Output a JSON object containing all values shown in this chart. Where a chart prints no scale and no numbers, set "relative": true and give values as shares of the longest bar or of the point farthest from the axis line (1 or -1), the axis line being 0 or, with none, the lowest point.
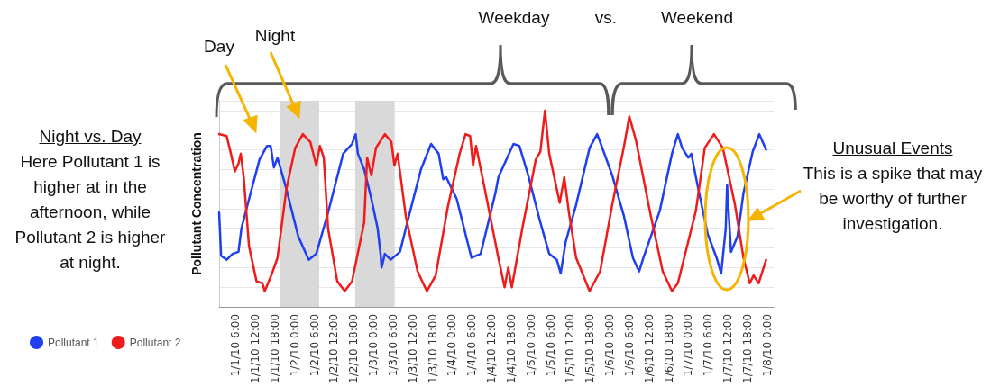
{
  "chart_data": {
    "type": "line",
    "relative": true,
    "ylabel": "Pollutant Concentration",
    "annotations": [
      "Day",
      "Night",
      "Weekday",
      "vs.",
      "Weekend",
      "Night vs. Day",
      "Here Pollutant 1 is higher at in the afternoon, while Pollutant 2 is higher at night.",
      "Unusual Events",
      "This is a spike that may be worthy of further investigation."
    ],
    "xlim": [
      "--01-01T01:00",
      "--01-08T02:00"
    ],
    "xticks": [
      {
        "value": "--01-01T06:00",
        "label": "1/1/10 6:00"
      },
      {
        "value": "--01-01T12:00",
        "label": "1/1/10 12:00"
      },
      {
        "value": "--01-01T18:00",
        "label": "1/1/10 18:00"
      },
      {
        "value": "--01-02T00:00",
        "label": "1/2/10 0:00"
      },
      {
        "value": "--01-02T06:00",
        "label": "1/2/10 6:00"
      },
      {
        "value": "--01-02T12:00",
        "label": "1/2/10 12:00"
      },
      {
        "value": "--01-02T18:00",
        "label": "1/2/10 18:00"
      },
      {
        "value": "--01-03T00:00",
        "label": "1/3/10 0:00"
      },
      {
        "value": "--01-03T06:00",
        "label": "1/3/10 6:00"
      },
      {
        "value": "--01-03T12:00",
        "label": "1/3/10 12:00"
      },
      {
        "value": "--01-03T18:00",
        "label": "1/3/10 18:00"
      },
      {
        "value": "--01-04T00:00",
        "label": "1/4/10 0:00"
      },
      {
        "value": "--01-04T06:00",
        "label": "1/4/10 6:00"
      },
      {
        "value": "--01-04T12:00",
        "label": "1/4/10 12:00"
      },
      {
        "value": "--01-04T18:00",
        "label": "1/4/10 18:00"
      },
      {
        "value": "--01-05T00:00",
        "label": "1/5/10 0:00"
      },
      {
        "value": "--01-05T06:00",
        "label": "1/5/10 6:00"
      },
      {
        "value": "--01-05T12:00",
        "label": "1/5/10 12:00"
      },
      {
        "value": "--01-05T18:00",
        "label": "1/5/10 18:00"
      },
      {
        "value": "--01-06T00:00",
        "label": "1/6/10 0:00"
      },
      {
        "value": "--01-06T06:00",
        "label": "1/6/10 6:00"
      },
      {
        "value": "--01-06T12:00",
        "label": "1/6/10 12:00"
      },
      {
        "value": "--01-06T18:00",
        "label": "1/6/10 18:00"
      },
      {
        "value": "--01-07T00:00",
        "label": "1/7/10 0:00"
      },
      {
        "value": "--01-07T06:00",
        "label": "1/7/10 6:00"
      },
      {
        "value": "--01-07T12:00",
        "label": "1/7/10 12:00"
      },
      {
        "value": "--01-07T18:00",
        "label": "1/7/10 18:00"
      },
      {
        "value": "--01-08T00:00",
        "label": "1/8/10 0:00"
      }
    ],
    "bands": [
      {
        "axis": "x",
        "from": "--01-01T19:30",
        "to": "--01-02T07:30",
        "color": "#d9d9d9"
      },
      {
        "axis": "x",
        "from": "--01-02T18:30",
        "to": "--01-03T06:30",
        "color": "#d9d9d9"
      }
    ],
    "grid": "y",
    "legend": "bottom left",
    "marker": "none",
    "line_style": "solid",
    "series": [
      {
        "name": "Pollutant 1",
        "color": "#1f3ff0",
        "x": [
          "--01-01T01:00",
          "--01-01T01:36",
          "--01-01T03:18",
          "--01-01T05:06",
          "--01-01T06:54",
          "--01-01T07:48",
          "--01-01T10:36",
          "--01-01T13:18",
          "--01-01T15:36",
          "--01-01T16:42",
          "--01-01T17:42",
          "--01-01T18:48",
          "--01-01T21:30",
          "--01-02T01:06",
          "--01-02T04:18",
          "--01-02T06:36",
          "--01-02T10:12",
          "--01-02T14:48",
          "--01-02T17:30",
          "--01-02T18:36",
          "--01-02T19:18",
          "--01-02T21:12",
          "--01-02T23:24",
          "--01-03T01:18",
          "--01-03T02:12",
          "--01-03T02:30",
          "--01-03T03:30",
          "--01-03T05:18",
          "--01-03T08:06",
          "--01-03T10:48",
          "--01-03T14:30",
          "--01-03T17:36",
          "--01-03T19:54",
          "--01-03T21:18",
          "--01-03T22:12",
          "--01-04T01:24",
          "--01-04T05:54",
          "--01-04T08:42",
          "--01-04T13:12",
          "--01-04T14:06",
          "--01-04T18:42",
          "--01-04T20:30",
          "--01-04T23:12",
          "--01-05T02:54",
          "--01-05T05:36",
          "--01-05T07:54",
          "--01-05T09:06",
          "--01-05T10:36",
          "--01-05T13:48",
          "--01-05T17:54",
          "--01-05T20:12",
          "--01-05T21:06",
          "--01-06T00:48",
          "--01-06T04:24",
          "--01-06T07:06",
          "--01-06T09:00",
          "--01-06T10:18",
          "--01-06T15:18",
          "--01-06T19:00",
          "--01-06T20:48",
          "--01-06T22:06",
          "--01-07T00:00",
          "--01-07T00:54",
          "--01-07T02:18",
          "--01-07T05:54",
          "--01-07T08:36",
          "--01-07T10:00",
          "--01-07T11:24",
          "--01-07T11:48",
          "--01-07T13:00",
          "--01-07T15:00",
          "--01-07T16:48",
          "--01-07T19:36",
          "--01-07T21:36",
          "--01-07T23:42"
        ],
        "values": [
          0.48,
          0.26,
          0.24,
          0.27,
          0.28,
          0.4,
          0.58,
          0.75,
          0.82,
          0.82,
          0.71,
          0.76,
          0.6,
          0.36,
          0.24,
          0.27,
          0.48,
          0.78,
          0.83,
          0.88,
          0.78,
          0.7,
          0.55,
          0.4,
          0.27,
          0.2,
          0.27,
          0.24,
          0.28,
          0.46,
          0.7,
          0.83,
          0.78,
          0.65,
          0.66,
          0.55,
          0.25,
          0.27,
          0.58,
          0.66,
          0.83,
          0.82,
          0.67,
          0.43,
          0.27,
          0.24,
          0.17,
          0.33,
          0.52,
          0.81,
          0.88,
          0.84,
          0.67,
          0.46,
          0.25,
          0.18,
          0.25,
          0.49,
          0.78,
          0.88,
          0.81,
          0.76,
          0.78,
          0.66,
          0.37,
          0.25,
          0.17,
          0.4,
          0.62,
          0.28,
          0.36,
          0.58,
          0.79,
          0.88,
          0.8
        ]
      },
      {
        "name": "Pollutant 2",
        "color": "#f01c1c",
        "x": [
          "--01-01T01:00",
          "--01-01T03:18",
          "--01-01T04:36",
          "--01-01T05:48",
          "--01-01T06:54",
          "--01-01T07:36",
          "--01-01T08:30",
          "--01-01T10:06",
          "--01-01T12:24",
          "--01-01T14:12",
          "--01-01T14:54",
          "--01-01T16:54",
          "--01-01T18:48",
          "--01-01T21:30",
          "--01-02T00:12",
          "--01-02T02:30",
          "--01-02T04:48",
          "--01-02T06:36",
          "--01-02T07:42",
          "--01-02T08:54",
          "--01-02T10:12",
          "--01-02T13:00",
          "--01-02T15:18",
          "--01-02T17:30",
          "--01-02T21:12",
          "--01-02T22:06",
          "--01-02T23:24",
          "--01-03T00:48",
          "--01-03T03:30",
          "--01-03T05:30",
          "--01-03T06:24",
          "--01-03T07:24",
          "--01-03T09:54",
          "--01-03T13:30",
          "--01-03T16:18",
          "--01-03T19:00",
          "--01-03T22:42",
          "--01-04T02:18",
          "--01-04T04:06",
          "--01-04T05:30",
          "--01-04T06:24",
          "--01-04T07:18",
          "--01-04T09:36",
          "--01-04T14:06",
          "--01-04T16:00",
          "--01-04T17:06",
          "--01-04T18:12",
          "--01-04T21:24",
          "--01-05T01:30",
          "--01-05T02:54",
          "--01-05T04:18",
          "--01-05T05:36",
          "--01-05T06:30",
          "--01-05T08:48",
          "--01-05T10:12",
          "--01-05T11:36",
          "--01-05T13:48",
          "--01-05T17:54",
          "--01-05T21:06",
          "--01-06T00:48",
          "--01-06T04:24",
          "--01-06T06:00",
          "--01-06T08:00",
          "--01-06T12:36",
          "--01-06T16:12",
          "--01-06T19:00",
          "--01-06T20:48",
          "--01-07T02:18",
          "--01-07T05:00",
          "--01-07T07:48",
          "--01-07T10:30",
          "--01-07T14:12",
          "--01-07T16:48",
          "--01-07T18:42",
          "--01-07T19:54",
          "--01-07T21:24",
          "--01-07T23:42"
        ],
        "values": [
          0.88,
          0.87,
          0.78,
          0.69,
          0.73,
          0.78,
          0.66,
          0.31,
          0.13,
          0.12,
          0.08,
          0.16,
          0.25,
          0.6,
          0.81,
          0.88,
          0.84,
          0.72,
          0.82,
          0.76,
          0.4,
          0.13,
          0.08,
          0.13,
          0.43,
          0.76,
          0.67,
          0.81,
          0.88,
          0.84,
          0.72,
          0.78,
          0.46,
          0.18,
          0.08,
          0.16,
          0.51,
          0.78,
          0.88,
          0.87,
          0.72,
          0.82,
          0.63,
          0.25,
          0.1,
          0.2,
          0.1,
          0.4,
          0.75,
          0.79,
          1.0,
          0.78,
          0.71,
          0.53,
          0.66,
          0.48,
          0.25,
          0.08,
          0.18,
          0.52,
          0.82,
          0.97,
          0.85,
          0.46,
          0.18,
          0.08,
          0.12,
          0.49,
          0.81,
          0.88,
          0.81,
          0.52,
          0.25,
          0.12,
          0.16,
          0.12,
          0.24
        ]
      }
    ]
  }
}
